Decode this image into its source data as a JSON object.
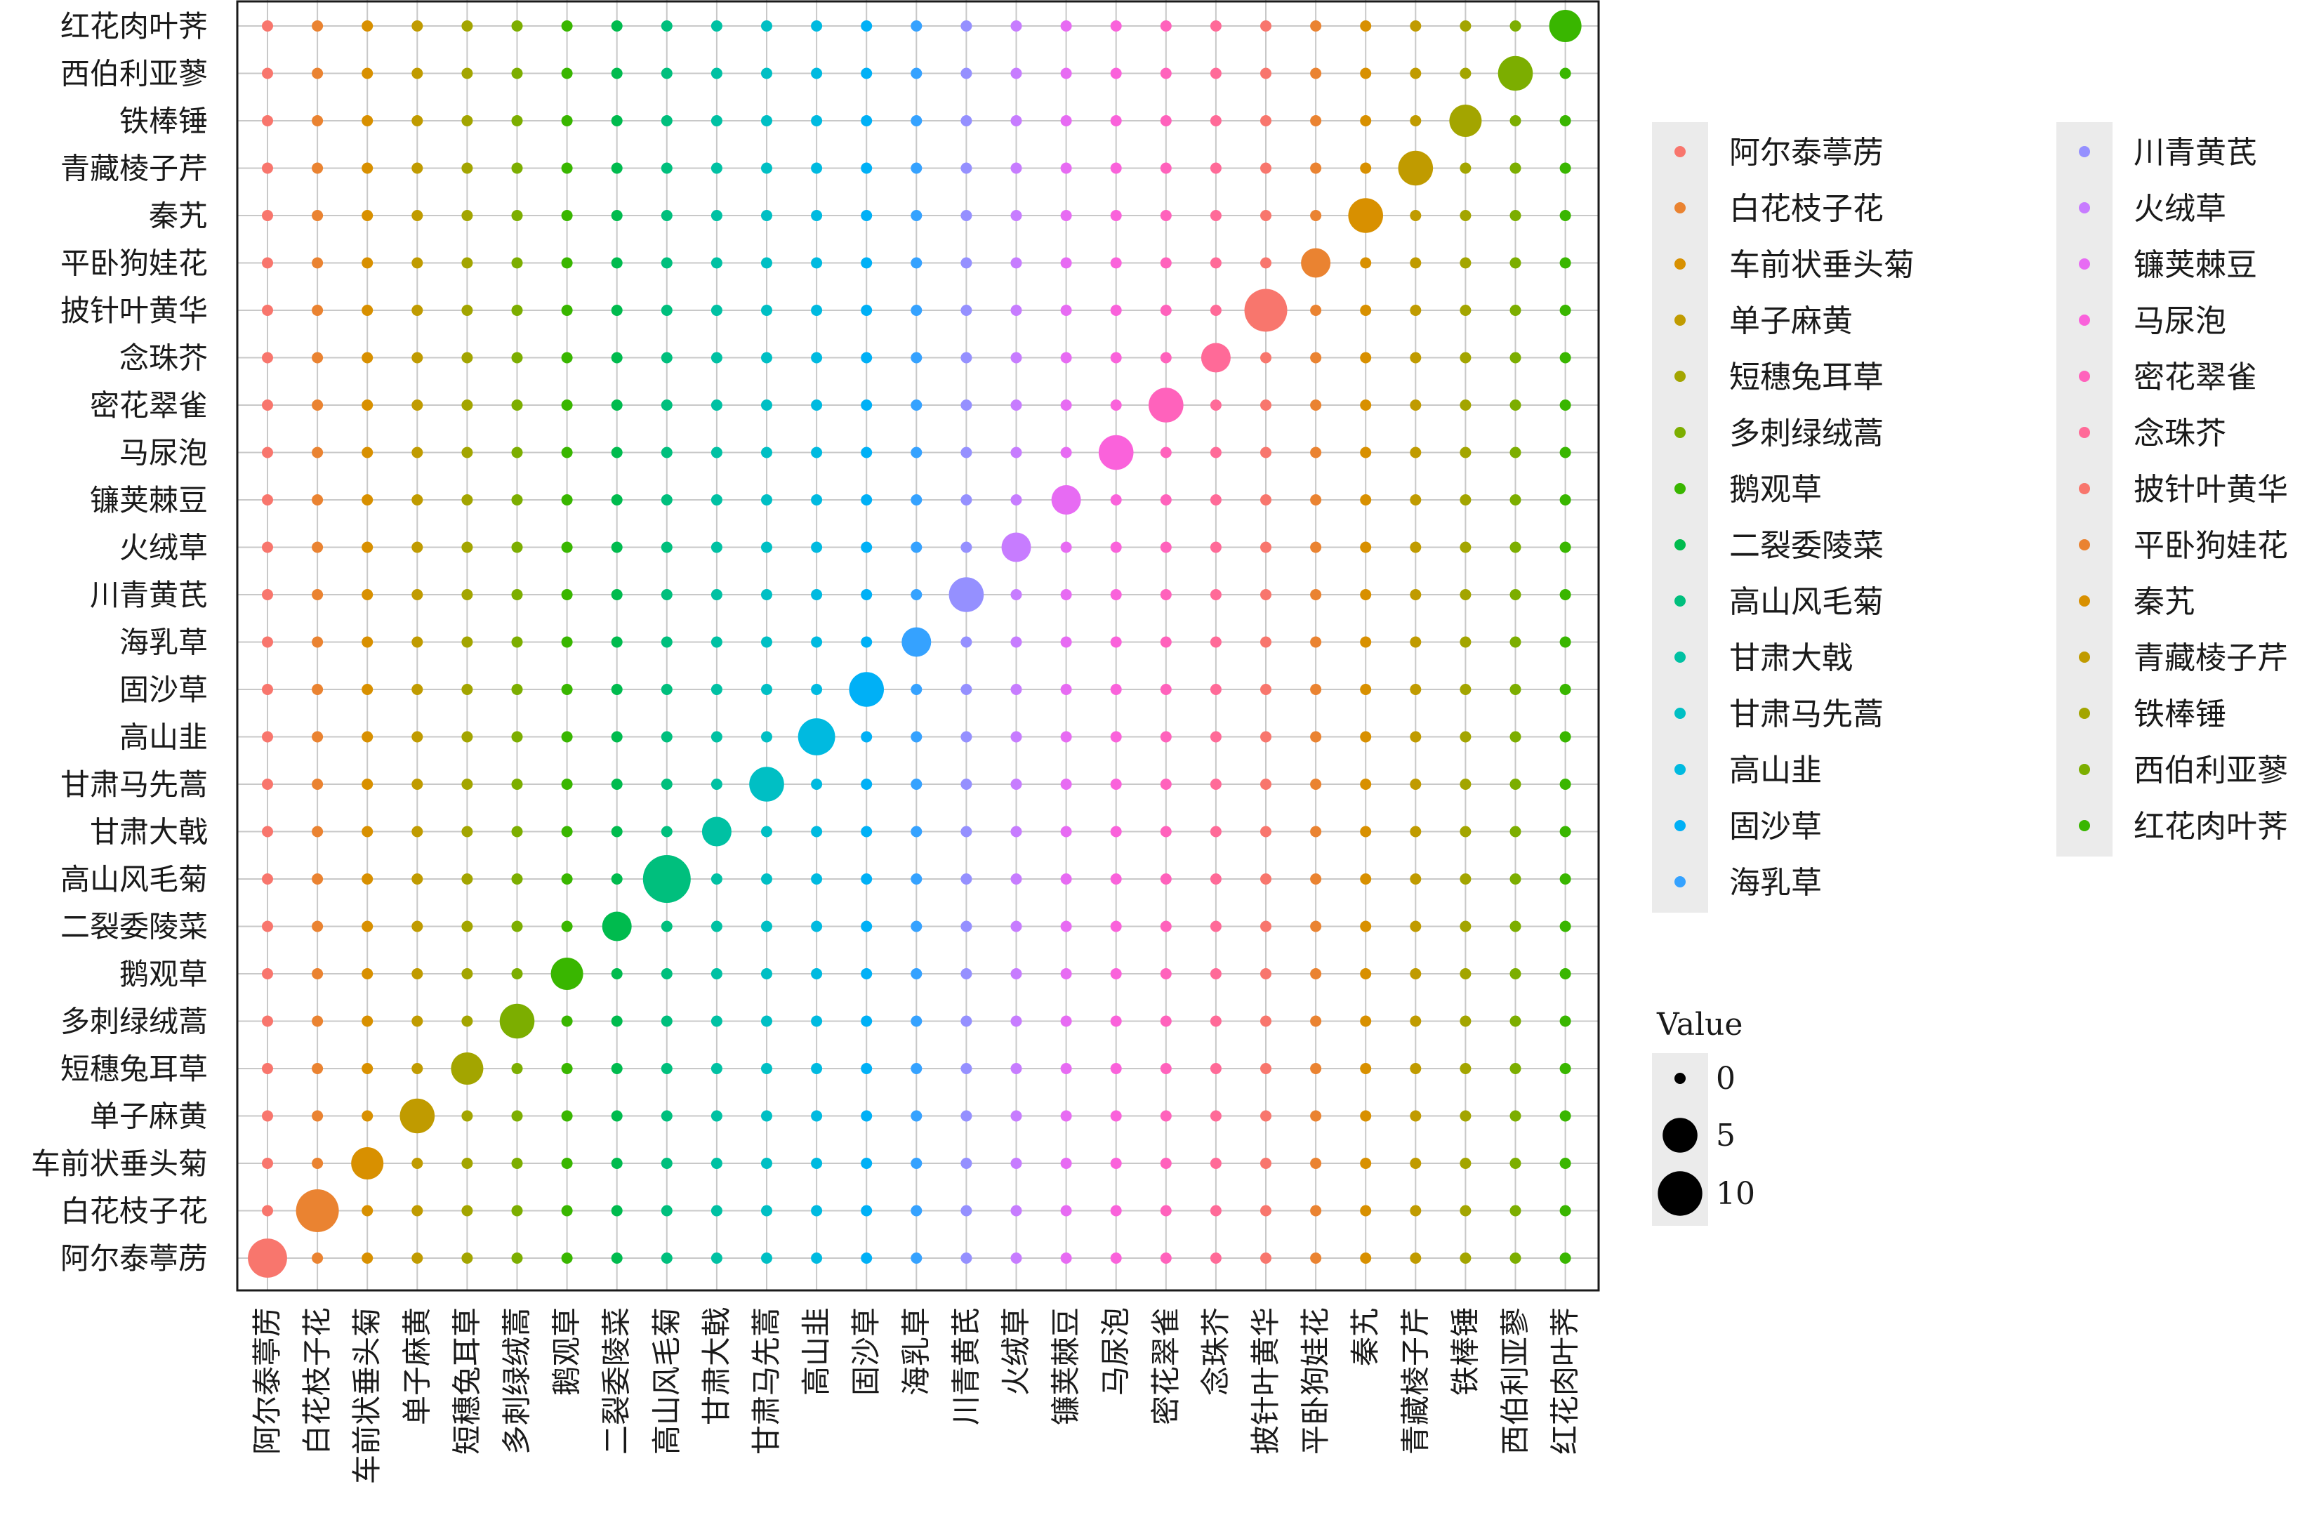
{
  "chart_data": {
    "type": "scatter",
    "subtype": "bubble-matrix",
    "x_categories": [
      "阿尔泰葶苈",
      "白花枝子花",
      "车前状垂头菊",
      "单子麻黄",
      "短穗兔耳草",
      "多刺绿绒蒿",
      "鹅观草",
      "二裂委陵菜",
      "高山风毛菊",
      "甘肃大戟",
      "甘肃马先蒿",
      "高山韭",
      "固沙草",
      "海乳草",
      "川青黄芪",
      "火绒草",
      "镰荚棘豆",
      "马尿泡",
      "密花翠雀",
      "念珠芥",
      "披针叶黄华",
      "平卧狗娃花",
      "秦艽",
      "青藏棱子芹",
      "铁棒锤",
      "西伯利亚蓼",
      "红花肉叶荠"
    ],
    "y_categories": [
      "阿尔泰葶苈",
      "白花枝子花",
      "车前状垂头菊",
      "单子麻黄",
      "短穗兔耳草",
      "多刺绿绒蒿",
      "鹅观草",
      "二裂委陵菜",
      "高山风毛菊",
      "甘肃大戟",
      "甘肃马先蒿",
      "高山韭",
      "固沙草",
      "海乳草",
      "川青黄芪",
      "火绒草",
      "镰荚棘豆",
      "马尿泡",
      "密花翠雀",
      "念珠芥",
      "披针叶黄华",
      "平卧狗娃花",
      "秦艽",
      "青藏棱子芹",
      "铁棒锤",
      "西伯利亚蓼",
      "红花肉叶荠"
    ],
    "off_diagonal_value": 0,
    "diagonal_values": [
      7,
      9,
      4,
      5,
      4,
      5,
      4,
      3,
      12,
      3,
      5,
      6,
      5,
      3,
      5,
      3,
      3,
      5,
      5,
      3,
      9,
      3,
      5,
      5,
      4,
      5,
      4
    ],
    "colors": [
      "#F8766D",
      "#EA8331",
      "#D89000",
      "#C09B00",
      "#A3A500",
      "#7CAE00",
      "#39B600",
      "#00BB4E",
      "#00BF7D",
      "#00C1A3",
      "#00BFC4",
      "#00BAE0",
      "#00B0F6",
      "#35A2FF",
      "#9590FF",
      "#C77CFF",
      "#E76BF3",
      "#FA62DB",
      "#FF62BC",
      "#FF6A98",
      "#F8766D",
      "#EA8331",
      "#D89000",
      "#C09B00",
      "#A3A500",
      "#7CAE00",
      "#39B600"
    ],
    "color_legend": {
      "col1": [
        "阿尔泰葶苈",
        "白花枝子花",
        "车前状垂头菊",
        "单子麻黄",
        "短穗兔耳草",
        "多刺绿绒蒿",
        "鹅观草",
        "二裂委陵菜",
        "高山风毛菊",
        "甘肃大戟",
        "甘肃马先蒿",
        "高山韭",
        "固沙草",
        "海乳草"
      ],
      "col2": [
        "川青黄芪",
        "火绒草",
        "镰荚棘豆",
        "马尿泡",
        "密花翠雀",
        "念珠芥",
        "披针叶黄华",
        "平卧狗娃花",
        "秦艽",
        "青藏棱子芹",
        "铁棒锤",
        "西伯利亚蓼",
        "红花肉叶荠"
      ]
    },
    "size_legend": {
      "title": "Value",
      "values": [
        0,
        5,
        10
      ],
      "labels": [
        "0",
        "5",
        "10"
      ]
    },
    "grid": true,
    "legend_position": "right"
  }
}
